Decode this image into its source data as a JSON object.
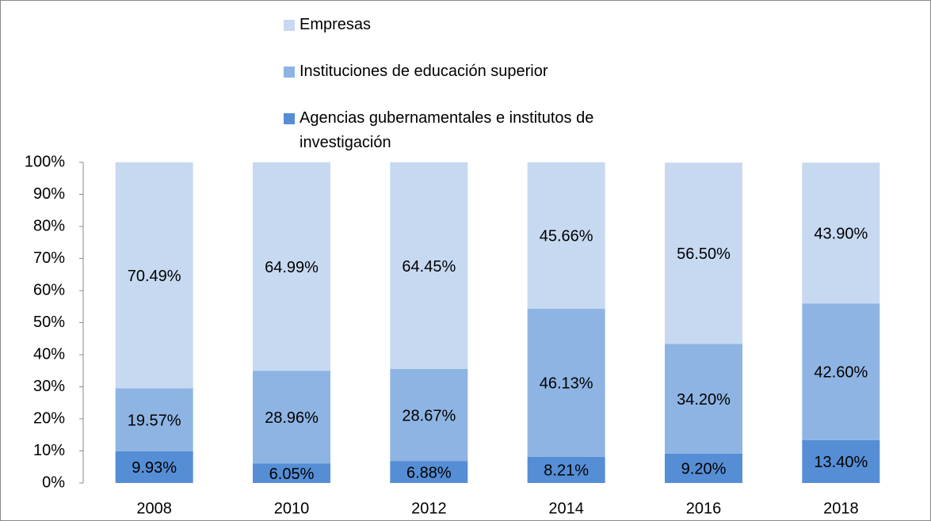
{
  "chart_data": {
    "type": "stacked_bar",
    "categories": [
      "2008",
      "2010",
      "2012",
      "2014",
      "2016",
      "2018"
    ],
    "series": [
      {
        "name": "Agencias gubernamentales e institutos de investigación",
        "color": "#558ed5",
        "values": [
          9.93,
          6.05,
          6.88,
          8.21,
          9.2,
          13.4
        ],
        "value_labels": [
          "9.93%",
          "6.05%",
          "6.88%",
          "8.21%",
          "9.20%",
          "13.40%"
        ]
      },
      {
        "name": "Instituciones de educación superior",
        "color": "#8eb4e3",
        "values": [
          19.57,
          28.96,
          28.67,
          46.13,
          34.2,
          42.6
        ],
        "value_labels": [
          "19.57%",
          "28.96%",
          "28.67%",
          "46.13%",
          "34.20%",
          "42.60%"
        ]
      },
      {
        "name": "Empresas",
        "color": "#c6d9f1",
        "values": [
          70.49,
          64.99,
          64.45,
          45.66,
          56.5,
          43.9
        ],
        "value_labels": [
          "70.49%",
          "64.99%",
          "64.45%",
          "45.66%",
          "56.50%",
          "43.90%"
        ]
      }
    ],
    "ylim": [
      0,
      100
    ],
    "yticks": [
      {
        "value": 0,
        "label": "0%"
      },
      {
        "value": 10,
        "label": "10%"
      },
      {
        "value": 20,
        "label": "20%"
      },
      {
        "value": 30,
        "label": "30%"
      },
      {
        "value": 40,
        "label": "40%"
      },
      {
        "value": 50,
        "label": "50%"
      },
      {
        "value": 60,
        "label": "60%"
      },
      {
        "value": 70,
        "label": "70%"
      },
      {
        "value": 80,
        "label": "80%"
      },
      {
        "value": 90,
        "label": "90%"
      },
      {
        "value": 100,
        "label": "100%"
      }
    ],
    "legend": "top"
  }
}
